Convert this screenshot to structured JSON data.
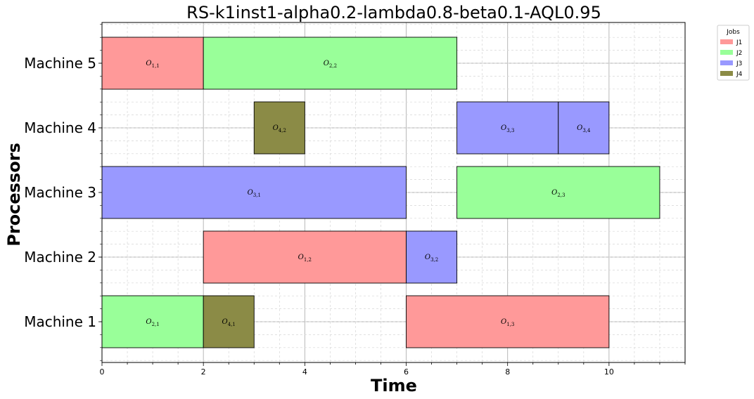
{
  "chart_data": {
    "type": "gantt",
    "title": "RS-k1inst1-alpha0.2-lambda0.8-beta0.1-AQL0.95",
    "xlabel": "Time",
    "ylabel": "Processors",
    "xlim": [
      0,
      11.5
    ],
    "xticks": [
      0,
      2,
      4,
      6,
      8,
      10
    ],
    "grid": true,
    "categories": [
      "Machine 1",
      "Machine 2",
      "Machine 3",
      "Machine 4",
      "Machine 5"
    ],
    "legend": {
      "title": "Jobs",
      "placement": "upper-right-outside",
      "entries": [
        {
          "name": "J1",
          "color": "#ff9999"
        },
        {
          "name": "J2",
          "color": "#99ff99"
        },
        {
          "name": "J3",
          "color": "#9999ff"
        },
        {
          "name": "J4",
          "color": "#8b8b46"
        }
      ]
    },
    "operations": [
      {
        "machine": "Machine 5",
        "job": "J1",
        "op": "1,1",
        "start": 0,
        "end": 2
      },
      {
        "machine": "Machine 5",
        "job": "J2",
        "op": "2,2",
        "start": 2,
        "end": 7
      },
      {
        "machine": "Machine 4",
        "job": "J4",
        "op": "4,2",
        "start": 3,
        "end": 4
      },
      {
        "machine": "Machine 4",
        "job": "J3",
        "op": "3,3",
        "start": 7,
        "end": 9
      },
      {
        "machine": "Machine 4",
        "job": "J3",
        "op": "3,4",
        "start": 9,
        "end": 10
      },
      {
        "machine": "Machine 3",
        "job": "J3",
        "op": "3,1",
        "start": 0,
        "end": 6
      },
      {
        "machine": "Machine 3",
        "job": "J2",
        "op": "2,3",
        "start": 7,
        "end": 11
      },
      {
        "machine": "Machine 2",
        "job": "J1",
        "op": "1,2",
        "start": 2,
        "end": 6
      },
      {
        "machine": "Machine 2",
        "job": "J3",
        "op": "3,2",
        "start": 6,
        "end": 7
      },
      {
        "machine": "Machine 1",
        "job": "J2",
        "op": "2,1",
        "start": 0,
        "end": 2
      },
      {
        "machine": "Machine 1",
        "job": "J4",
        "op": "4,1",
        "start": 2,
        "end": 3
      },
      {
        "machine": "Machine 1",
        "job": "J1",
        "op": "1,3",
        "start": 6,
        "end": 10
      }
    ]
  }
}
